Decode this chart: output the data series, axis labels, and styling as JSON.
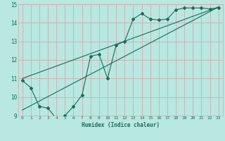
{
  "title": "",
  "xlabel": "Humidex (Indice chaleur)",
  "ylabel": "",
  "bg_color": "#b8e8e0",
  "grid_color": "#d4a8b0",
  "line_color": "#1a6b5a",
  "xlim": [
    -0.5,
    23.5
  ],
  "ylim": [
    9,
    15
  ],
  "xticks": [
    0,
    1,
    2,
    3,
    4,
    5,
    6,
    7,
    8,
    9,
    10,
    11,
    12,
    13,
    14,
    15,
    16,
    17,
    18,
    19,
    20,
    21,
    22,
    23
  ],
  "yticks": [
    9,
    10,
    11,
    12,
    13,
    14,
    15
  ],
  "data_x": [
    0,
    1,
    2,
    3,
    4,
    5,
    6,
    7,
    8,
    9,
    10,
    11,
    12,
    13,
    14,
    15,
    16,
    17,
    18,
    19,
    20,
    21,
    22,
    23
  ],
  "data_y": [
    10.9,
    10.5,
    9.5,
    9.4,
    8.85,
    9.0,
    9.5,
    10.1,
    12.2,
    12.3,
    11.0,
    12.8,
    13.0,
    14.2,
    14.5,
    14.2,
    14.15,
    14.2,
    14.7,
    14.8,
    14.8,
    14.8,
    14.75,
    14.8
  ],
  "trend1_x": [
    0,
    23
  ],
  "trend1_y": [
    11.0,
    14.85
  ],
  "trend2_x": [
    0,
    23
  ],
  "trend2_y": [
    9.3,
    14.85
  ]
}
